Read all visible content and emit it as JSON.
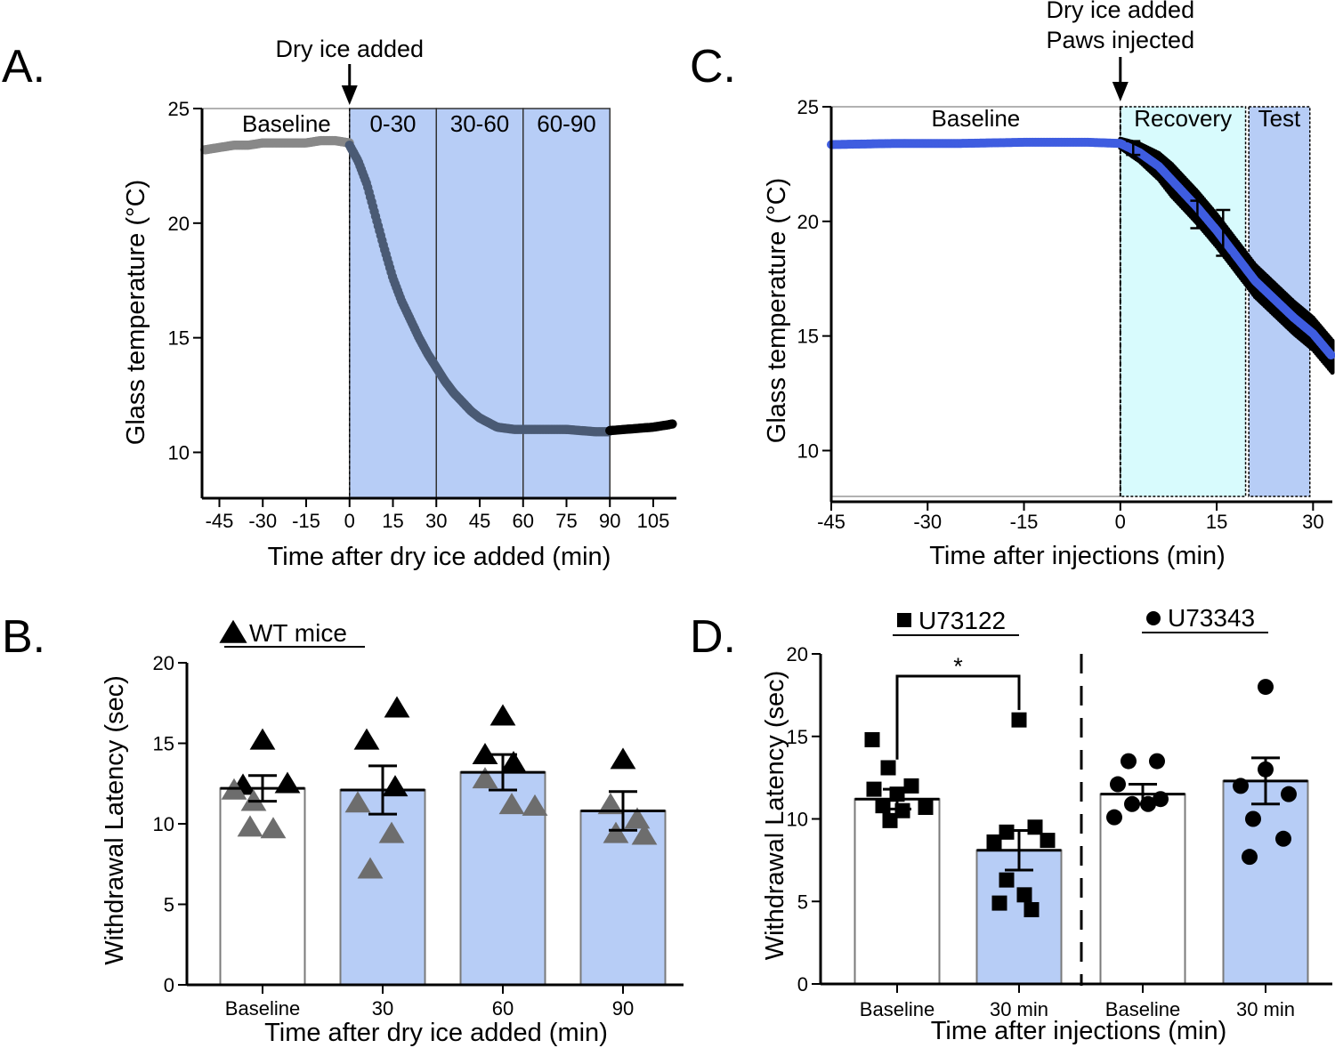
{
  "colors": {
    "shade_blue": "#b7cdf6",
    "shade_cyan": "#d8fbfd",
    "trace_gray": "#888888",
    "trace_slate": "#4a5a74",
    "trace_black": "#000000",
    "trace_blue": "#3f5de0",
    "marker_dark": "#000000",
    "marker_gray": "#6d6d6d",
    "bar_outline": "#7a7a7a"
  },
  "chart_data": [
    {
      "panel": "A.",
      "type": "line",
      "title": "",
      "xlabel": "Time after dry ice added (min)",
      "ylabel": "Glass temperature (°C)",
      "xlim": [
        -51,
        113
      ],
      "ylim": [
        8,
        25
      ],
      "xticks": [
        -45,
        -30,
        -15,
        0,
        15,
        30,
        45,
        60,
        75,
        90,
        105
      ],
      "yticks": [
        10,
        15,
        20,
        25
      ],
      "annotation": "Dry ice added",
      "regions": [
        {
          "label": "Baseline",
          "x0": -51,
          "x1": 0,
          "shaded": false
        },
        {
          "label": "0-30",
          "x0": 0,
          "x1": 30,
          "shaded": true
        },
        {
          "label": "30-60",
          "x0": 30,
          "x1": 60,
          "shaded": true
        },
        {
          "label": "60-90",
          "x0": 60,
          "x1": 90,
          "shaded": true
        }
      ],
      "series": [
        {
          "segment": "baseline",
          "x": [
            -50,
            -45,
            -40,
            -35,
            -30,
            -25,
            -20,
            -15,
            -10,
            -5,
            0
          ],
          "y": [
            23.2,
            23.3,
            23.4,
            23.4,
            23.5,
            23.5,
            23.5,
            23.5,
            23.6,
            23.6,
            23.5
          ]
        },
        {
          "segment": "cooling",
          "x": [
            0,
            3,
            6,
            9,
            12,
            15,
            18,
            21,
            24,
            27,
            30,
            33,
            36,
            39,
            42,
            45,
            48,
            51,
            54,
            57,
            60,
            65,
            70,
            75,
            80,
            85,
            90
          ],
          "y": [
            23.4,
            22.7,
            21.7,
            20.3,
            18.9,
            17.6,
            16.6,
            15.8,
            15.0,
            14.3,
            13.7,
            13.1,
            12.6,
            12.2,
            11.8,
            11.5,
            11.3,
            11.1,
            11.05,
            11.0,
            11.0,
            11.0,
            11.0,
            11.0,
            10.95,
            10.9,
            10.9
          ]
        },
        {
          "segment": "after",
          "x": [
            90,
            95,
            100,
            105,
            110,
            112
          ],
          "y": [
            10.95,
            11.0,
            11.05,
            11.1,
            11.2,
            11.25
          ]
        }
      ]
    },
    {
      "panel": "B.",
      "type": "bar",
      "title": "",
      "legend": "WT mice",
      "xlabel": "Time after dry ice added (min)",
      "ylabel": "Withdrawal Latency (sec)",
      "ylim": [
        0,
        20
      ],
      "yticks": [
        0,
        5,
        10,
        15,
        20
      ],
      "categories": [
        "Baseline",
        "30",
        "60",
        "90"
      ],
      "values": [
        12.2,
        12.1,
        13.2,
        10.8
      ],
      "sem": [
        0.8,
        1.5,
        1.1,
        1.2
      ],
      "points": [
        {
          "dark": [
            15.2,
            12.5,
            12.4
          ],
          "gray": [
            12.1,
            11.4,
            9.7,
            9.8
          ]
        },
        {
          "dark": [
            17.2,
            15.2,
            12.3
          ],
          "gray": [
            11.3,
            9.4,
            7.2
          ]
        },
        {
          "dark": [
            16.7,
            14.3,
            13.8
          ],
          "gray": [
            12.8,
            11.2,
            11.1
          ]
        },
        {
          "dark": [
            14.0
          ],
          "gray": [
            11.2,
            10.3,
            9.4,
            9.3
          ]
        }
      ]
    },
    {
      "panel": "C.",
      "type": "line",
      "title": "",
      "xlabel": "Time after injections (min)",
      "ylabel": "Glass temperature (°C)",
      "xlim": [
        -45,
        33
      ],
      "ylim": [
        8,
        25
      ],
      "xticks": [
        -45,
        -30,
        -15,
        0,
        15,
        30
      ],
      "yticks": [
        10,
        15,
        20,
        25
      ],
      "annotation": [
        "Dry ice added",
        "Paws injected"
      ],
      "regions": [
        {
          "label": "Baseline",
          "x0": -45,
          "x1": 0,
          "fill": "none"
        },
        {
          "label": "Recovery",
          "x0": 0,
          "x1": 19.5,
          "fill": "cyan"
        },
        {
          "label": "Test",
          "x0": 20,
          "x1": 29.5,
          "fill": "blue"
        }
      ],
      "series": [
        {
          "x": [
            -45,
            -35,
            -25,
            -15,
            -5,
            0,
            3,
            6,
            9,
            12,
            15,
            18,
            21,
            24,
            27,
            30,
            33
          ],
          "y": [
            23.35,
            23.4,
            23.4,
            23.45,
            23.45,
            23.4,
            23.0,
            22.4,
            21.5,
            20.6,
            19.6,
            18.5,
            17.4,
            16.6,
            15.8,
            15.1,
            14.1
          ]
        }
      ],
      "band_halfwidth": 0.5,
      "error_bars": [
        {
          "x": 2,
          "y": 23.2,
          "err": 0.3
        },
        {
          "x": 12,
          "y": 20.3,
          "err": 0.6
        },
        {
          "x": 16,
          "y": 19.5,
          "err": 1.0
        }
      ]
    },
    {
      "panel": "D.",
      "type": "bar",
      "title": "",
      "xlabel": "Time after injections (min)",
      "ylabel": "Withdrawal Latency (sec)",
      "ylim": [
        0,
        20
      ],
      "yticks": [
        0,
        5,
        10,
        15,
        20
      ],
      "groups": [
        {
          "legend": "U73122",
          "marker": "square"
        },
        {
          "legend": "U73343",
          "marker": "circle"
        }
      ],
      "categories": [
        "Baseline",
        "30 min",
        "Baseline",
        "30 min"
      ],
      "values": [
        11.2,
        8.1,
        11.5,
        12.3
      ],
      "sem": [
        0.6,
        1.2,
        0.6,
        1.4
      ],
      "significance": "*",
      "points": [
        [
          14.8,
          13.1,
          12.0,
          11.8,
          11.5,
          10.8,
          10.7,
          10.5,
          9.9
        ],
        [
          16.0,
          9.5,
          9.2,
          8.7,
          8.6,
          6.3,
          5.4,
          4.9,
          4.5
        ],
        [
          13.5,
          13.5,
          12.1,
          11.2,
          10.9,
          10.9,
          10.1
        ],
        [
          18.0,
          13.0,
          12.0,
          11.5,
          10.0,
          8.8,
          7.7
        ]
      ]
    }
  ]
}
